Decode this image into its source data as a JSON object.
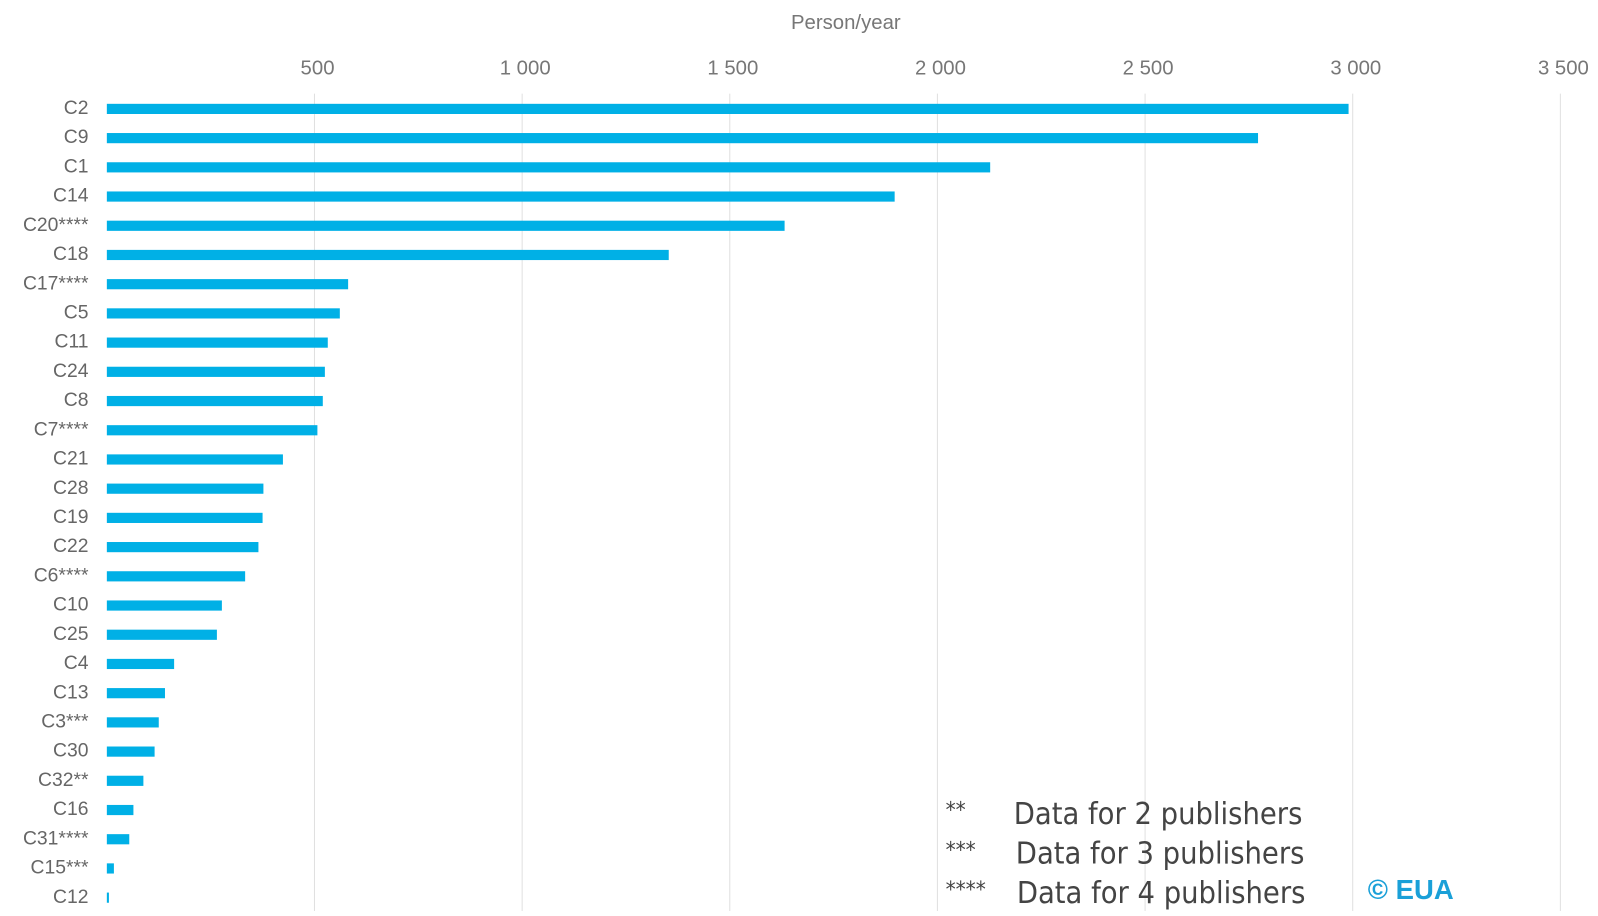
{
  "chart_data": {
    "type": "barh",
    "xlabel": "Person/year",
    "categories": [
      "C2",
      "C9",
      "C1",
      "C14",
      "C20****",
      "C18",
      "C17****",
      "C5",
      "C11",
      "C24",
      "C8",
      "C7****",
      "C21",
      "C28",
      "C19",
      "C22",
      "C6****",
      "C10",
      "C25",
      "C4",
      "C13",
      "C3***",
      "C30",
      "C32**",
      "C16",
      "C31****",
      "C15***",
      "C12"
    ],
    "values": [
      2990,
      2772,
      2127,
      1897,
      1632,
      1353,
      581,
      561,
      532,
      525,
      520,
      507,
      424,
      377,
      375,
      365,
      333,
      277,
      265,
      162,
      140,
      125,
      115,
      88,
      64,
      54,
      17,
      5
    ],
    "color": "#00b0e6",
    "xlim": [
      0,
      3500
    ],
    "xticks": [
      500,
      {
        "value": 1000,
        "label": "1 000"
      },
      {
        "value": 1500,
        "label": "1 500"
      },
      {
        "value": 2000,
        "label": "2 000"
      },
      {
        "value": 2500,
        "label": "2 500"
      },
      {
        "value": 3000,
        "label": "3 000"
      },
      {
        "value": 3500,
        "label": "3 500"
      }
    ],
    "grid": true,
    "notes": [
      {
        "marker": "**",
        "text": "Data for 2 publishers"
      },
      {
        "marker": "***",
        "text": "Data for 3 publishers"
      },
      {
        "marker": "****",
        "text": "Data for 4 publishers"
      }
    ],
    "credit": "© EUA"
  }
}
